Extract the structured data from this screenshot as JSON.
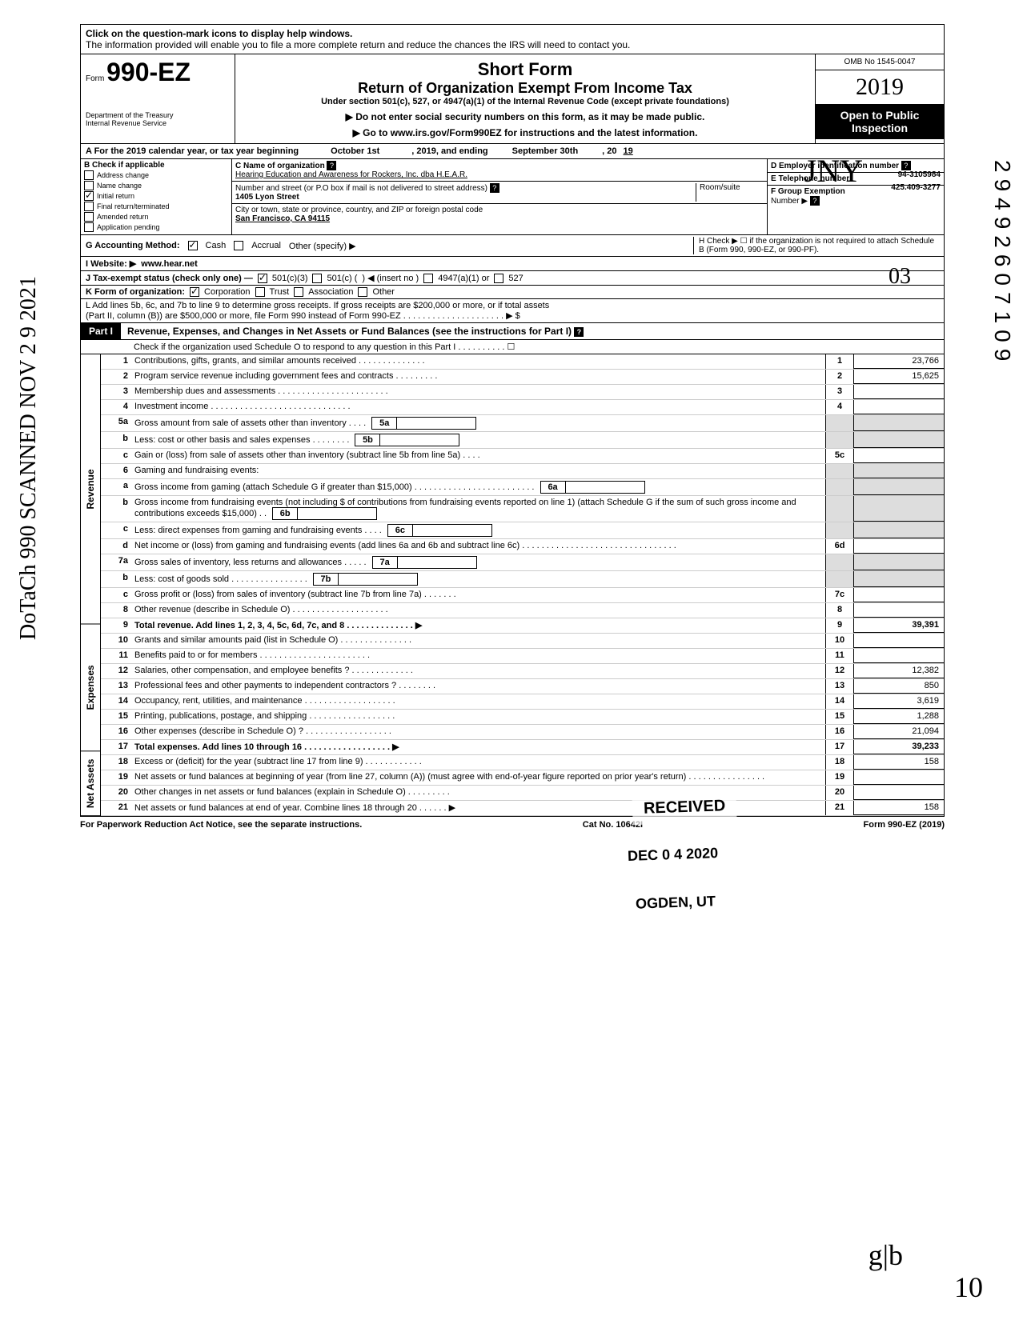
{
  "side": {
    "left_text": "DoTaCh 990 SCANNED NOV 2 9 2021",
    "right_num": "29492607109"
  },
  "help_box": {
    "line1": "Click on the question-mark icons to display help windows.",
    "line2": "The information provided will enable you to file a more complete return and reduce the chances the IRS will need to contact you."
  },
  "header": {
    "form_prefix": "Form",
    "form_number": "990-EZ",
    "dept": "Department of the Treasury",
    "irs": "Internal Revenue Service",
    "title1": "Short Form",
    "title2": "Return of Organization Exempt From Income Tax",
    "title3": "Under section 501(c), 527, or 4947(a)(1) of the Internal Revenue Code (except private foundations)",
    "note1": "▶ Do not enter social security numbers on this form, as it may be made public.",
    "note2": "▶ Go to www.irs.gov/Form990EZ for instructions and the latest information.",
    "omb": "OMB No 1545-0047",
    "year": "2019",
    "open1": "Open to Public",
    "open2": "Inspection"
  },
  "a_line": {
    "prefix": "A For the 2019 calendar year, or tax year beginning",
    "begin": "October 1st",
    "mid": ", 2019, and ending",
    "end": "September 30th",
    "yr_prefix": ", 20",
    "yr": "19"
  },
  "b": {
    "header": "B Check if applicable",
    "items": [
      {
        "label": "Address change",
        "checked": false
      },
      {
        "label": "Name change",
        "checked": false
      },
      {
        "label": "Initial return",
        "checked": true
      },
      {
        "label": "Final return/terminated",
        "checked": false
      },
      {
        "label": "Amended return",
        "checked": false
      },
      {
        "label": "Application pending",
        "checked": false
      }
    ]
  },
  "c": {
    "name_label": "C Name of organization",
    "name": "Hearing Education and Awareness for Rockers, Inc. dba H.E.A.R.",
    "addr_label": "Number and street (or P.O box if mail is not delivered to street address)",
    "room_label": "Room/suite",
    "addr": "1405 Lyon Street",
    "city_label": "City or town, state or province, country, and ZIP or foreign postal code",
    "city": "San Francisco, CA  94115"
  },
  "d": {
    "label": "D Employer identification number",
    "value": "94-3105984"
  },
  "e": {
    "label": "E Telephone number",
    "value": "425.409-3277"
  },
  "f": {
    "label": "F Group Exemption",
    "label2": "Number ▶"
  },
  "g": {
    "label": "G  Accounting Method:",
    "cash": "Cash",
    "accrual": "Accrual",
    "other": "Other (specify) ▶"
  },
  "h": {
    "text": "H Check ▶ ☐ if the organization is not required to attach Schedule B (Form 990, 990-EZ, or 990-PF)."
  },
  "i": {
    "label": "I  Website: ▶",
    "value": "www.hear.net"
  },
  "j": {
    "label": "J Tax-exempt status (check only one) —",
    "opt1": "501(c)(3)",
    "opt2": "501(c) (",
    "opt2b": ") ◀ (insert no )",
    "opt3": "4947(a)(1) or",
    "opt4": "527"
  },
  "k": {
    "label": "K Form of organization:",
    "corp": "Corporation",
    "trust": "Trust",
    "assoc": "Association",
    "other": "Other"
  },
  "l": {
    "text1": "L Add lines 5b, 6c, and 7b to line 9 to determine gross receipts. If gross receipts are $200,000 or more, or if total assets",
    "text2": "(Part II, column (B)) are $500,000 or more, file Form 990 instead of Form 990-EZ . . . . . . . . . . . . . . . . . . . . . ▶  $"
  },
  "part1": {
    "label": "Part I",
    "title": "Revenue, Expenses, and Changes in Net Assets or Fund Balances (see the instructions for Part I)",
    "check": "Check if the organization used Schedule O to respond to any question in this Part I . . . . . . . . . . ☐"
  },
  "categories": {
    "revenue": "Revenue",
    "expenses": "Expenses",
    "netassets": "Net Assets"
  },
  "lines": [
    {
      "n": "1",
      "desc": "Contributions, gifts, grants, and similar amounts received . . . . . . . . . . . . . .",
      "box": "1",
      "val": "23,766"
    },
    {
      "n": "2",
      "desc": "Program service revenue including government fees and contracts . . . . . . . . .",
      "box": "2",
      "val": "15,625"
    },
    {
      "n": "3",
      "desc": "Membership dues and assessments . . . . . . . . . . . . . . . . . . . . . . .",
      "box": "3",
      "val": ""
    },
    {
      "n": "4",
      "desc": "Investment income . . . . . . . . . . . . . . . . . . . . . . . . . . . . .",
      "box": "4",
      "val": ""
    },
    {
      "n": "5a",
      "desc": "Gross amount from sale of assets other than inventory . . . .",
      "inner": "5a"
    },
    {
      "n": "b",
      "desc": "Less: cost or other basis and sales expenses . . . . . . . .",
      "inner": "5b"
    },
    {
      "n": "c",
      "desc": "Gain or (loss) from sale of assets other than inventory (subtract line 5b from line 5a) . . . .",
      "box": "5c",
      "val": ""
    },
    {
      "n": "6",
      "desc": "Gaming and fundraising events:"
    },
    {
      "n": "a",
      "desc": "Gross income from gaming (attach Schedule G if greater than $15,000) . . . . . . . . . . . . . . . . . . . . . . . . .",
      "inner": "6a"
    },
    {
      "n": "b",
      "desc": "Gross income from fundraising events (not including  $                       of contributions from fundraising events reported on line 1) (attach Schedule G if the sum of such gross income and contributions exceeds $15,000) . .",
      "inner": "6b"
    },
    {
      "n": "c",
      "desc": "Less: direct expenses from gaming and fundraising events . . . .",
      "inner": "6c"
    },
    {
      "n": "d",
      "desc": "Net income or (loss) from gaming and fundraising events (add lines 6a and 6b and subtract line 6c) . . . . . . . . . . . . . . . . . . . . . . . . . . . . . . . .",
      "box": "6d",
      "val": ""
    },
    {
      "n": "7a",
      "desc": "Gross sales of inventory, less returns and allowances . . . . .",
      "inner": "7a"
    },
    {
      "n": "b",
      "desc": "Less: cost of goods sold . . . . . . . . . . . . . . . .",
      "inner": "7b"
    },
    {
      "n": "c",
      "desc": "Gross profit or (loss) from sales of inventory (subtract line 7b from line 7a) . . . . . . .",
      "box": "7c",
      "val": ""
    },
    {
      "n": "8",
      "desc": "Other revenue (describe in Schedule O) . . . . . . . . . . . . . . . . . . . .",
      "box": "8",
      "val": ""
    },
    {
      "n": "9",
      "desc": "Total revenue. Add lines 1, 2, 3, 4, 5c, 6d, 7c, and 8 . . . . . . . . . . . . . . ▶",
      "box": "9",
      "val": "39,391",
      "bold": true
    },
    {
      "n": "10",
      "desc": "Grants and similar amounts paid (list in Schedule O) . . . . . . . . . . . . . . .",
      "box": "10",
      "val": ""
    },
    {
      "n": "11",
      "desc": "Benefits paid to or for members . . . . . . . . . . . . . . . . . . . . . . .",
      "box": "11",
      "val": ""
    },
    {
      "n": "12",
      "desc": "Salaries, other compensation, and employee benefits ? . . . . . . . . . . . . .",
      "box": "12",
      "val": "12,382"
    },
    {
      "n": "13",
      "desc": "Professional fees and other payments to independent contractors ? . . . . . . . .",
      "box": "13",
      "val": "850"
    },
    {
      "n": "14",
      "desc": "Occupancy, rent, utilities, and maintenance . . . . . . . . . . . . . . . . . . .",
      "box": "14",
      "val": "3,619"
    },
    {
      "n": "15",
      "desc": "Printing, publications, postage, and shipping . . . . . . . . . . . . . . . . . .",
      "box": "15",
      "val": "1,288"
    },
    {
      "n": "16",
      "desc": "Other expenses (describe in Schedule O) ? . . . . . . . . . . . . . . . . . .",
      "box": "16",
      "val": "21,094"
    },
    {
      "n": "17",
      "desc": "Total expenses. Add lines 10 through 16 . . . . . . . . . . . . . . . . . . ▶",
      "box": "17",
      "val": "39,233",
      "bold": true
    },
    {
      "n": "18",
      "desc": "Excess or (deficit) for the year (subtract line 17 from line 9) . . . . . . . . . . . .",
      "box": "18",
      "val": "158"
    },
    {
      "n": "19",
      "desc": "Net assets or fund balances at beginning of year (from line 27, column (A)) (must agree with end-of-year figure reported on prior year's return) . . . . . . . . . . . . . . . .",
      "box": "19",
      "val": ""
    },
    {
      "n": "20",
      "desc": "Other changes in net assets or fund balances (explain in Schedule O) . . . . . . . . .",
      "box": "20",
      "val": ""
    },
    {
      "n": "21",
      "desc": "Net assets or fund balances at end of year. Combine lines 18 through 20 . . . . . . ▶",
      "box": "21",
      "val": "158"
    }
  ],
  "footer": {
    "left": "For Paperwork Reduction Act Notice, see the separate instructions.",
    "mid": "Cat No. 10642I",
    "right": "Form 990-EZ (2019)"
  },
  "stamps": {
    "received": "RECEIVED",
    "date": "DEC 0 4 2020",
    "ogden": "OGDEN, UT",
    "hand03": "03",
    "hand_glb": "g|b",
    "hand_10": "10",
    "initials": "JNY"
  }
}
